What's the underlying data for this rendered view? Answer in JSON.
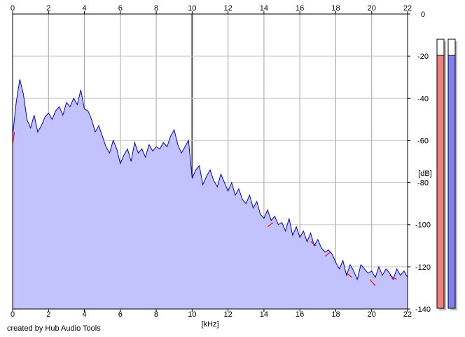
{
  "footer": "created by Hub Audio Tools",
  "chart_data": {
    "type": "area",
    "xlabel": "[kHz]",
    "ylabel": "[dB]",
    "xlim": [
      0,
      22
    ],
    "ylim": [
      -140,
      0
    ],
    "x_ticks": [
      0,
      2,
      4,
      6,
      8,
      10,
      12,
      14,
      16,
      18,
      20,
      22
    ],
    "x_tick_labels": [
      "0",
      "2",
      "4",
      "6",
      "8",
      "10",
      "12",
      "14",
      "16",
      "18",
      "20",
      "22"
    ],
    "y_ticks": [
      0,
      -20,
      -40,
      -60,
      -80,
      -100,
      -120,
      -140
    ],
    "y_tick_labels": [
      "0",
      "-20",
      "-40",
      "-60",
      "-80",
      "-100",
      "-120",
      "-140"
    ],
    "grid": true,
    "fill_color": "#c2c2ff",
    "series": [
      {
        "color": "#0000cc",
        "x": [
          0,
          0.2,
          0.4,
          0.6,
          0.8,
          1.0,
          1.2,
          1.4,
          1.6,
          1.8,
          2.0,
          2.2,
          2.4,
          2.6,
          2.8,
          3.0,
          3.2,
          3.4,
          3.6,
          3.8,
          4.0,
          4.2,
          4.4,
          4.6,
          4.8,
          5.0,
          5.2,
          5.4,
          5.6,
          5.8,
          6.0,
          6.2,
          6.4,
          6.6,
          6.8,
          7.0,
          7.2,
          7.4,
          7.6,
          7.8,
          8.0,
          8.2,
          8.4,
          8.6,
          8.8,
          9.0,
          9.2,
          9.4,
          9.6,
          9.8,
          10.0,
          10.2,
          10.4,
          10.6,
          10.8,
          11.0,
          11.2,
          11.4,
          11.6,
          11.8,
          12.0,
          12.2,
          12.4,
          12.6,
          12.8,
          13.0,
          13.2,
          13.4,
          13.6,
          13.8,
          14.0,
          14.2,
          14.4,
          14.6,
          14.8,
          15.0,
          15.2,
          15.4,
          15.6,
          15.8,
          16.0,
          16.2,
          16.4,
          16.6,
          16.8,
          17.0,
          17.2,
          17.4,
          17.6,
          17.8,
          18.0,
          18.2,
          18.4,
          18.6,
          18.8,
          19.0,
          19.2,
          19.4,
          19.6,
          19.8,
          20.0,
          20.2,
          20.4,
          20.6,
          20.8,
          21.0,
          21.2,
          21.4,
          21.6,
          21.8,
          22.0
        ],
        "y": [
          -58,
          -42,
          -31,
          -38,
          -50,
          -54,
          -48,
          -56,
          -53,
          -49,
          -47,
          -50,
          -46,
          -44,
          -48,
          -42,
          -44,
          -40,
          -43,
          -36,
          -45,
          -46,
          -50,
          -56,
          -53,
          -58,
          -63,
          -66,
          -60,
          -64,
          -71,
          -67,
          -64,
          -70,
          -61,
          -66,
          -64,
          -68,
          -62,
          -65,
          -63,
          -64,
          -61,
          -63,
          -58,
          -55,
          -62,
          -66,
          -63,
          -60,
          -78,
          -74,
          -72,
          -81,
          -77,
          -74,
          -79,
          -82,
          -76,
          -80,
          -84,
          -80,
          -86,
          -83,
          -88,
          -90,
          -86,
          -92,
          -89,
          -95,
          -97,
          -93,
          -98,
          -96,
          -100,
          -99,
          -103,
          -97,
          -105,
          -101,
          -106,
          -103,
          -108,
          -104,
          -110,
          -107,
          -111,
          -113,
          -112,
          -114,
          -118,
          -121,
          -117,
          -124,
          -119,
          -122,
          -126,
          -119,
          -121,
          -123,
          -122,
          -125,
          -120,
          -124,
          -121,
          -123,
          -126,
          -121,
          -124,
          -122,
          -125
        ]
      },
      {
        "color": "#ff0000",
        "x": [
          0,
          0.1,
          14.2,
          14.5,
          16.6,
          16.9,
          17.4,
          17.7,
          18.6,
          18.9,
          19.9,
          20.2,
          21.0,
          21.4,
          21.9
        ],
        "y": [
          -62,
          -56,
          -101,
          -99,
          -108,
          -110,
          -115,
          -113,
          -123,
          -125,
          -126,
          -129,
          -124,
          -126,
          -127
        ]
      }
    ]
  },
  "meters": [
    {
      "color": "#f08080",
      "level": 0.94
    },
    {
      "color": "#8080f0",
      "level": 0.94
    }
  ]
}
